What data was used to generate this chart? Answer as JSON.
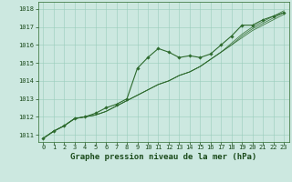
{
  "background_color": "#cce8e0",
  "plot_bg_color": "#cce8e0",
  "grid_color": "#99ccbb",
  "line_color": "#2d6a2d",
  "marker_color": "#2d6a2d",
  "title": "Graphe pression niveau de la mer (hPa)",
  "label_color": "#1a4a1a",
  "ylim": [
    1010.6,
    1018.4
  ],
  "xlim": [
    -0.5,
    23.5
  ],
  "yticks": [
    1011,
    1012,
    1013,
    1014,
    1015,
    1016,
    1017,
    1018
  ],
  "xticks": [
    0,
    1,
    2,
    3,
    4,
    5,
    6,
    7,
    8,
    9,
    10,
    11,
    12,
    13,
    14,
    15,
    16,
    17,
    18,
    19,
    20,
    21,
    22,
    23
  ],
  "series": [
    [
      1010.8,
      1011.2,
      1011.5,
      1011.9,
      1012.0,
      1012.2,
      1012.5,
      1012.7,
      1013.0,
      1014.7,
      1015.3,
      1015.8,
      1015.6,
      1015.3,
      1015.4,
      1015.3,
      1015.5,
      1016.0,
      1016.5,
      1017.1,
      1017.1,
      1017.4,
      1017.6,
      1017.8
    ],
    [
      1010.8,
      1011.2,
      1011.5,
      1011.9,
      1012.0,
      1012.1,
      1012.3,
      1012.6,
      1012.9,
      1013.2,
      1013.5,
      1013.8,
      1014.0,
      1014.3,
      1014.5,
      1014.8,
      1015.2,
      1015.6,
      1016.0,
      1016.4,
      1016.8,
      1017.1,
      1017.4,
      1017.7
    ],
    [
      1010.8,
      1011.2,
      1011.5,
      1011.9,
      1012.0,
      1012.1,
      1012.3,
      1012.6,
      1012.9,
      1013.2,
      1013.5,
      1013.8,
      1014.0,
      1014.3,
      1014.5,
      1014.8,
      1015.2,
      1015.6,
      1016.0,
      1016.5,
      1016.9,
      1017.2,
      1017.5,
      1017.8
    ],
    [
      1010.8,
      1011.2,
      1011.5,
      1011.9,
      1012.0,
      1012.1,
      1012.3,
      1012.6,
      1012.9,
      1013.2,
      1013.5,
      1013.8,
      1014.0,
      1014.3,
      1014.5,
      1014.8,
      1015.2,
      1015.6,
      1016.1,
      1016.6,
      1017.0,
      1017.3,
      1017.6,
      1017.9
    ]
  ],
  "main_series_idx": 0,
  "title_fontsize": 6.5,
  "tick_fontsize": 5.0
}
